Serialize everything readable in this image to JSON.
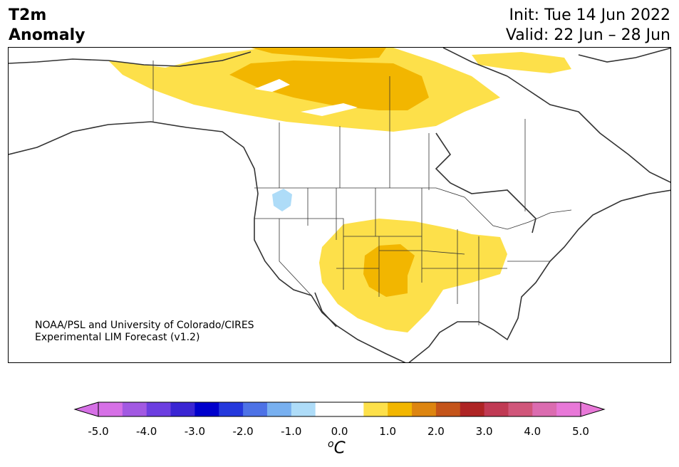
{
  "header": {
    "variable_line1": "T2m",
    "variable_line2": "Anomaly",
    "init": "Init: Tue 14 Jun 2022",
    "valid": "Valid: 22 Jun – 28 Jun"
  },
  "credit": {
    "line1": "NOAA/PSL and University of Colorado/CIRES",
    "line2": "Experimental LIM Forecast (v1.2)"
  },
  "colorbar": {
    "unit_base": "C",
    "unit_sup": "o",
    "ticks": [
      "-5.0",
      "-4.0",
      "-3.0",
      "-2.0",
      "-1.0",
      "0.0",
      "1.0",
      "2.0",
      "3.0",
      "4.0",
      "5.0"
    ],
    "colors": [
      "#d670e6",
      "#a259e2",
      "#6c3ee0",
      "#3a25d3",
      "#0000cc",
      "#2438dc",
      "#4d72e6",
      "#78b0f0",
      "#aedcf8",
      "#ffffff",
      "#ffffff",
      "#fde04a",
      "#f2b600",
      "#dd8510",
      "#c4541a",
      "#ae2424",
      "#c03a54",
      "#d0567a",
      "#db6cb0",
      "#e878d8"
    ],
    "under_color": "#d670e6",
    "over_color": "#e878d8"
  },
  "map": {
    "region": "North America",
    "warm_light": "#fde04a",
    "warm_mid": "#f2b600",
    "cool_light": "#aedcf8"
  }
}
